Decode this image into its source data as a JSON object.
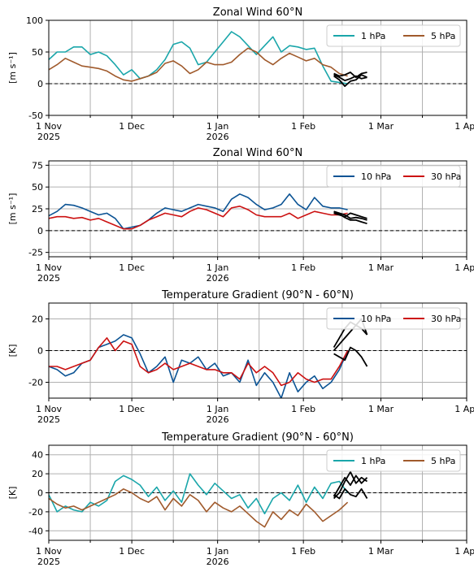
{
  "colors": {
    "1 hPa": "#1aa6aa",
    "5 hPa": "#a05a2c",
    "10 hPa": "#0b5394",
    "30 hPa": "#cc1111",
    "forecast": "#000000",
    "grid": "#b0b0b0"
  },
  "chart_data": [
    {
      "type": "line",
      "title": "Zonal Wind 60°N",
      "ylabel": "[m s⁻¹]",
      "ylim": [
        -50,
        100
      ],
      "yticks": [
        -50,
        0,
        50,
        100
      ],
      "xlim_days": [
        0,
        151
      ],
      "xticks": [
        {
          "label": "1 Nov",
          "label2": "2025"
        },
        {
          "label": "1 Dec",
          "label2": ""
        },
        {
          "label": "1 Jan",
          "label2": "2026"
        },
        {
          "label": "1 Feb",
          "label2": ""
        },
        {
          "label": "1 Mar",
          "label2": ""
        },
        {
          "label": "1 Apr",
          "label2": ""
        }
      ],
      "legend_position": "top-right",
      "grid": true,
      "zero_line": true,
      "series": [
        {
          "name": "1 hPa",
          "x": [
            0,
            3,
            6,
            9,
            12,
            15,
            18,
            21,
            24,
            27,
            30,
            33,
            36,
            39,
            42,
            45,
            48,
            51,
            54,
            57,
            60,
            63,
            66,
            69,
            72,
            75,
            78,
            81,
            84,
            87,
            90,
            93,
            96,
            99,
            102,
            105,
            108
          ],
          "y": [
            38,
            50,
            50,
            58,
            58,
            46,
            50,
            44,
            30,
            14,
            22,
            8,
            12,
            22,
            38,
            62,
            66,
            56,
            30,
            34,
            50,
            66,
            82,
            74,
            60,
            46,
            60,
            74,
            50,
            60,
            58,
            54,
            56,
            28,
            4,
            2,
            0
          ]
        },
        {
          "name": "5 hPa",
          "x": [
            0,
            3,
            6,
            9,
            12,
            15,
            18,
            21,
            24,
            27,
            30,
            33,
            36,
            39,
            42,
            45,
            48,
            51,
            54,
            57,
            60,
            63,
            66,
            69,
            72,
            75,
            78,
            81,
            84,
            87,
            90,
            93,
            96,
            99,
            102,
            105,
            108
          ],
          "y": [
            22,
            30,
            40,
            34,
            28,
            26,
            24,
            20,
            12,
            6,
            4,
            8,
            12,
            18,
            32,
            36,
            28,
            16,
            22,
            34,
            30,
            30,
            34,
            46,
            56,
            50,
            38,
            30,
            40,
            48,
            42,
            36,
            40,
            30,
            26,
            16,
            12
          ]
        },
        {
          "name": "",
          "x": [
            103,
            105,
            107,
            109,
            111,
            113,
            115
          ],
          "y": [
            14,
            10,
            5,
            8,
            12,
            8,
            10
          ]
        },
        {
          "name": "",
          "x": [
            103,
            105,
            107,
            109,
            111,
            113,
            115
          ],
          "y": [
            16,
            12,
            14,
            18,
            10,
            16,
            18
          ]
        },
        {
          "name": "",
          "x": [
            103,
            105,
            107,
            109,
            111,
            113,
            115
          ],
          "y": [
            12,
            6,
            -4,
            4,
            6,
            14,
            10
          ]
        }
      ]
    },
    {
      "type": "line",
      "title": "Zonal Wind 60°N",
      "ylabel": "[m s⁻¹]",
      "ylim": [
        -30,
        80
      ],
      "yticks": [
        -25,
        0,
        25,
        50,
        75
      ],
      "xlim_days": [
        0,
        151
      ],
      "xticks": [
        {
          "label": "1 Nov",
          "label2": "2025"
        },
        {
          "label": "1 Dec",
          "label2": ""
        },
        {
          "label": "1 Jan",
          "label2": "2026"
        },
        {
          "label": "1 Feb",
          "label2": ""
        },
        {
          "label": "1 Mar",
          "label2": ""
        },
        {
          "label": "1 Apr",
          "label2": ""
        }
      ],
      "legend_position": "top-right",
      "grid": true,
      "zero_line": true,
      "series": [
        {
          "name": "10 hPa",
          "x": [
            0,
            3,
            6,
            9,
            12,
            15,
            18,
            21,
            24,
            27,
            30,
            33,
            36,
            39,
            42,
            45,
            48,
            51,
            54,
            57,
            60,
            63,
            66,
            69,
            72,
            75,
            78,
            81,
            84,
            87,
            90,
            93,
            96,
            99,
            102,
            105,
            108
          ],
          "y": [
            17,
            22,
            30,
            29,
            26,
            22,
            18,
            20,
            14,
            2,
            4,
            6,
            12,
            20,
            26,
            24,
            22,
            26,
            30,
            28,
            26,
            22,
            36,
            42,
            38,
            30,
            24,
            26,
            30,
            42,
            30,
            24,
            38,
            28,
            26,
            26,
            24
          ]
        },
        {
          "name": "30 hPa",
          "x": [
            0,
            3,
            6,
            9,
            12,
            15,
            18,
            21,
            24,
            27,
            30,
            33,
            36,
            39,
            42,
            45,
            48,
            51,
            54,
            57,
            60,
            63,
            66,
            69,
            72,
            75,
            78,
            81,
            84,
            87,
            90,
            93,
            96,
            99,
            102,
            105,
            108
          ],
          "y": [
            14,
            16,
            16,
            14,
            15,
            12,
            14,
            10,
            6,
            2,
            2,
            6,
            12,
            16,
            20,
            18,
            16,
            22,
            26,
            24,
            20,
            16,
            26,
            28,
            24,
            18,
            16,
            16,
            16,
            20,
            14,
            18,
            22,
            20,
            18,
            18,
            20
          ]
        },
        {
          "name": "",
          "x": [
            103,
            105,
            107,
            109,
            111,
            113,
            115
          ],
          "y": [
            22,
            20,
            18,
            14,
            15,
            14,
            12
          ]
        },
        {
          "name": "",
          "x": [
            103,
            105,
            107,
            109,
            111,
            113,
            115
          ],
          "y": [
            20,
            18,
            16,
            20,
            18,
            16,
            14
          ]
        },
        {
          "name": "",
          "x": [
            103,
            105,
            107,
            109,
            111,
            113,
            115
          ],
          "y": [
            21,
            19,
            15,
            12,
            12,
            10,
            8
          ]
        }
      ]
    },
    {
      "type": "line",
      "title": "Temperature Gradient (90°N - 60°N)",
      "ylabel": "[K]",
      "ylim": [
        -30,
        30
      ],
      "yticks": [
        -20,
        0,
        20
      ],
      "xlim_days": [
        0,
        151
      ],
      "xticks": [
        {
          "label": "1 Nov",
          "label2": "2025"
        },
        {
          "label": "1 Dec",
          "label2": ""
        },
        {
          "label": "1 Jan",
          "label2": "2026"
        },
        {
          "label": "1 Feb",
          "label2": ""
        },
        {
          "label": "1 Mar",
          "label2": ""
        },
        {
          "label": "1 Apr",
          "label2": ""
        }
      ],
      "legend_position": "top-right",
      "grid": true,
      "zero_line": true,
      "series": [
        {
          "name": "10 hPa",
          "x": [
            0,
            3,
            6,
            9,
            12,
            15,
            18,
            21,
            24,
            27,
            30,
            33,
            36,
            39,
            42,
            45,
            48,
            51,
            54,
            57,
            60,
            63,
            66,
            69,
            72,
            75,
            78,
            81,
            84,
            87,
            90,
            93,
            96,
            99,
            102,
            105,
            108
          ],
          "y": [
            -10,
            -12,
            -16,
            -14,
            -8,
            -6,
            2,
            4,
            6,
            10,
            8,
            -2,
            -14,
            -10,
            -4,
            -20,
            -6,
            -8,
            -4,
            -12,
            -8,
            -16,
            -14,
            -20,
            -6,
            -22,
            -14,
            -20,
            -30,
            -14,
            -26,
            -20,
            -16,
            -24,
            -20,
            -12,
            0
          ]
        },
        {
          "name": "30 hPa",
          "x": [
            0,
            3,
            6,
            9,
            12,
            15,
            18,
            21,
            24,
            27,
            30,
            33,
            36,
            39,
            42,
            45,
            48,
            51,
            54,
            57,
            60,
            63,
            66,
            69,
            72,
            75,
            78,
            81,
            84,
            87,
            90,
            93,
            96,
            99,
            102,
            105,
            108
          ],
          "y": [
            -10,
            -10,
            -12,
            -10,
            -8,
            -6,
            2,
            8,
            0,
            6,
            4,
            -10,
            -14,
            -12,
            -8,
            -12,
            -10,
            -8,
            -10,
            -12,
            -12,
            -14,
            -14,
            -18,
            -8,
            -14,
            -10,
            -14,
            -22,
            -20,
            -14,
            -18,
            -20,
            -18,
            -18,
            -10,
            0
          ]
        },
        {
          "name": "",
          "x": [
            103,
            105,
            107,
            109,
            111,
            113,
            115
          ],
          "y": [
            2,
            8,
            14,
            18,
            16,
            20,
            10
          ]
        },
        {
          "name": "",
          "x": [
            103,
            105,
            107,
            109,
            111,
            113,
            115
          ],
          "y": [
            0,
            4,
            8,
            12,
            16,
            14,
            10
          ]
        },
        {
          "name": "",
          "x": [
            103,
            105,
            107,
            109,
            111,
            113,
            115
          ],
          "y": [
            -2,
            -4,
            -6,
            2,
            0,
            -4,
            -10
          ]
        }
      ]
    },
    {
      "type": "line",
      "title": "Temperature Gradient (90°N - 60°N)",
      "ylabel": "[K]",
      "ylim": [
        -50,
        50
      ],
      "yticks": [
        -40,
        -20,
        0,
        20,
        40
      ],
      "xlim_days": [
        0,
        151
      ],
      "xticks": [
        {
          "label": "1 Nov",
          "label2": "2025"
        },
        {
          "label": "1 Dec",
          "label2": ""
        },
        {
          "label": "1 Jan",
          "label2": "2026"
        },
        {
          "label": "1 Feb",
          "label2": ""
        },
        {
          "label": "1 Mar",
          "label2": ""
        },
        {
          "label": "1 Apr",
          "label2": ""
        }
      ],
      "legend_position": "top-right",
      "grid": true,
      "zero_line": true,
      "series": [
        {
          "name": "1 hPa",
          "x": [
            0,
            3,
            6,
            9,
            12,
            15,
            18,
            21,
            24,
            27,
            30,
            33,
            36,
            39,
            42,
            45,
            48,
            51,
            54,
            57,
            60,
            63,
            66,
            69,
            72,
            75,
            78,
            81,
            84,
            87,
            90,
            93,
            96,
            99,
            102,
            105,
            108
          ],
          "y": [
            -2,
            -20,
            -14,
            -18,
            -20,
            -10,
            -14,
            -8,
            12,
            18,
            14,
            8,
            -4,
            6,
            -8,
            2,
            -10,
            20,
            8,
            -2,
            10,
            2,
            -6,
            -2,
            -16,
            -6,
            -22,
            -6,
            0,
            -8,
            8,
            -10,
            6,
            -6,
            10,
            12,
            0
          ]
        },
        {
          "name": "5 hPa",
          "x": [
            0,
            3,
            6,
            9,
            12,
            15,
            18,
            21,
            24,
            27,
            30,
            33,
            36,
            39,
            42,
            45,
            48,
            51,
            54,
            57,
            60,
            63,
            66,
            69,
            72,
            75,
            78,
            81,
            84,
            87,
            90,
            93,
            96,
            99,
            102,
            105,
            108
          ],
          "y": [
            -6,
            -12,
            -16,
            -14,
            -18,
            -14,
            -10,
            -6,
            -2,
            4,
            0,
            -6,
            -10,
            -4,
            -18,
            -6,
            -14,
            -2,
            -8,
            -20,
            -10,
            -16,
            -20,
            -14,
            -22,
            -30,
            -36,
            -20,
            -28,
            -18,
            -24,
            -12,
            -20,
            -30,
            -24,
            -18,
            -10
          ]
        },
        {
          "name": "",
          "x": [
            103,
            105,
            107,
            109,
            111,
            113,
            115
          ],
          "y": [
            -6,
            0,
            12,
            22,
            10,
            16,
            12
          ]
        },
        {
          "name": "",
          "x": [
            103,
            105,
            107,
            109,
            111,
            113,
            115
          ],
          "y": [
            -4,
            6,
            16,
            8,
            18,
            10,
            16
          ]
        },
        {
          "name": "",
          "x": [
            103,
            105,
            107,
            109,
            111,
            113,
            115
          ],
          "y": [
            -2,
            -6,
            4,
            -2,
            -4,
            4,
            -6
          ]
        }
      ]
    }
  ]
}
